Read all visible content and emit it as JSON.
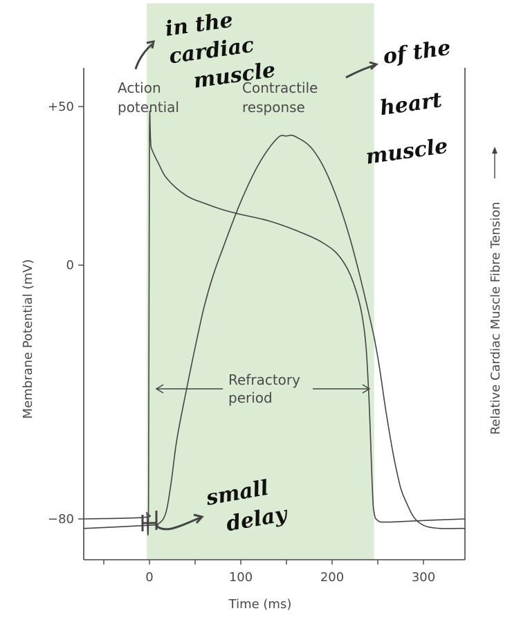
{
  "chart_data": {
    "type": "line",
    "title": "",
    "xlabel": "Time (ms)",
    "ylabel_left": "Membrane Potential (mV)",
    "ylabel_right": "Relative Cardiac Muscle Fibre Tension",
    "right_axis_arrow": "→",
    "xlim": [
      -75,
      350
    ],
    "ylim": [
      -90,
      63
    ],
    "x_ticks": [
      0,
      100,
      200,
      300
    ],
    "x_tick_labels": [
      "0",
      "100",
      "200",
      "300"
    ],
    "y_ticks": [
      50,
      0,
      -80
    ],
    "y_tick_labels": [
      "+50",
      "0",
      "−80"
    ],
    "grid": false,
    "shaded_region": {
      "x_start": -3,
      "x_end": 246,
      "color": "#dcebd3"
    },
    "series": [
      {
        "name": "Action potential",
        "x": [
          -75,
          -5,
          -3,
          -1,
          0,
          2,
          10,
          20,
          40,
          60,
          80,
          100,
          130,
          160,
          190,
          210,
          225,
          235,
          240,
          244,
          246,
          250,
          260,
          300,
          350
        ],
        "y": [
          -80,
          -79.5,
          -78,
          -75,
          40,
          37,
          32,
          27,
          22,
          19.5,
          17.5,
          16,
          14,
          11,
          7,
          2,
          -7,
          -20,
          -40,
          -70,
          -78,
          -80.5,
          -81,
          -80.5,
          -80
        ]
      },
      {
        "name": "Contractile response",
        "x": [
          -75,
          0,
          10,
          18,
          24,
          30,
          40,
          50,
          60,
          70,
          80,
          100,
          120,
          140,
          150,
          160,
          180,
          200,
          220,
          240,
          250,
          260,
          270,
          280,
          300,
          350
        ],
        "y": [
          -83,
          -82,
          -81.5,
          -78,
          -68,
          -55,
          -40,
          -26,
          -13,
          -3,
          5,
          20,
          32,
          40,
          40.7,
          40.5,
          36,
          25,
          8,
          -15,
          -29,
          -48,
          -64,
          -74,
          -82,
          -83
        ]
      }
    ],
    "annotations": [
      {
        "text": "Action\npotential",
        "at": "upper-left of shaded region"
      },
      {
        "text": "Contractile\nresponse",
        "at": "upper-middle of shaded region"
      },
      {
        "text": "Refractory\nperiod",
        "at": "center, with double-headed arrow spanning shaded region"
      }
    ],
    "handwritten_notes": [
      {
        "text": "in the\ncardiac\nmuscle",
        "at": "top-left, arrow pointing to Action potential"
      },
      {
        "text": "of the\nheart\nmuscle",
        "at": "top-right, arrow from Contractile response"
      },
      {
        "text": "small\ndelay",
        "at": "bottom-left near 0 ms, arrow from small gap"
      }
    ]
  }
}
